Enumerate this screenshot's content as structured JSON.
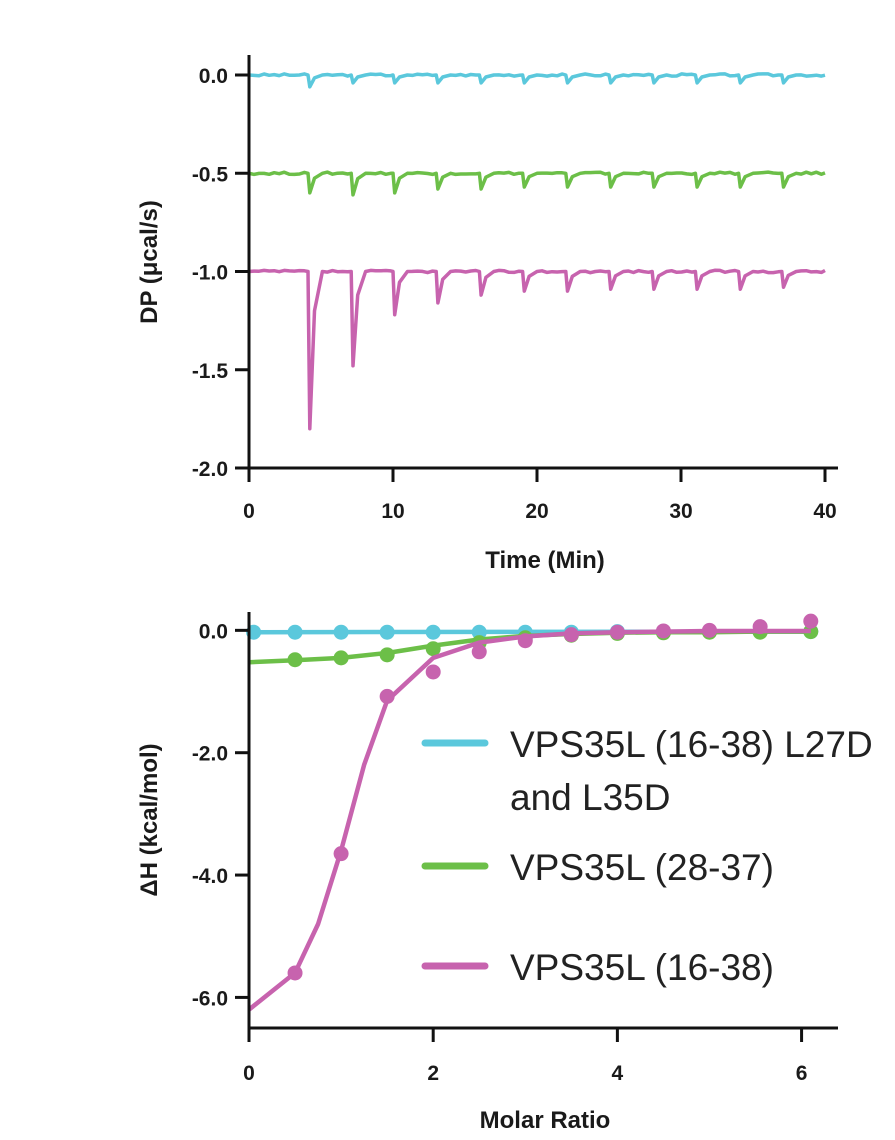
{
  "chart_data": [
    {
      "type": "line",
      "title": "",
      "xlabel": "Time (Min)",
      "ylabel": "DP (μcal/s)",
      "xlim": [
        0,
        40
      ],
      "ylim": [
        -2.0,
        0.0
      ],
      "x_ticks": [
        "0",
        "10",
        "20",
        "30",
        "40"
      ],
      "y_ticks": [
        "0.0",
        "-0.5",
        "-1.0",
        "-1.5",
        "-2.0"
      ],
      "injection_times": [
        4.1,
        7.1,
        10.0,
        13.0,
        16.0,
        19.0,
        22.0,
        25.0,
        28.0,
        31.0,
        34.0,
        37.0
      ],
      "series": [
        {
          "name": "VPS35L (16-38) L27D and L35D",
          "color": "#5bc8dc",
          "baseline": 0.0,
          "peak_depths": [
            0.06,
            0.04,
            0.04,
            0.04,
            0.04,
            0.04,
            0.04,
            0.04,
            0.04,
            0.04,
            0.04,
            0.04
          ]
        },
        {
          "name": "VPS35L (28-37)",
          "color": "#6cbf48",
          "baseline": -0.5,
          "peak_depths": [
            0.1,
            0.11,
            0.1,
            0.08,
            0.08,
            0.07,
            0.07,
            0.07,
            0.07,
            0.07,
            0.07,
            0.07
          ]
        },
        {
          "name": "VPS35L (16-38)",
          "color": "#c763ae",
          "baseline": -1.0,
          "peak_depths": [
            0.8,
            0.48,
            0.22,
            0.16,
            0.12,
            0.1,
            0.1,
            0.09,
            0.09,
            0.09,
            0.09,
            0.08
          ]
        }
      ]
    },
    {
      "type": "scatter",
      "title": "",
      "xlabel": "Molar Ratio",
      "ylabel": "ΔH (kcal/mol)",
      "xlim": [
        0,
        6.2
      ],
      "ylim": [
        -6.5,
        0.3
      ],
      "x_ticks": [
        "0",
        "2",
        "4",
        "6"
      ],
      "y_ticks": [
        "0.0",
        "-2.0",
        "-4.0",
        "-6.0"
      ],
      "series": [
        {
          "name": "VPS35L (16-38) L27D and L35D",
          "color": "#5bc8dc",
          "points_x": [
            0.05,
            0.5,
            1.0,
            1.5,
            2.0,
            2.5,
            3.0,
            3.5,
            4.0,
            4.5,
            5.0,
            5.55,
            6.1
          ],
          "points_y": [
            -0.03,
            -0.03,
            -0.03,
            -0.03,
            -0.03,
            -0.03,
            -0.03,
            -0.03,
            -0.02,
            -0.02,
            -0.02,
            -0.02,
            -0.02
          ],
          "fit_x": [
            0.0,
            6.1
          ],
          "fit_y": [
            -0.03,
            -0.02
          ]
        },
        {
          "name": "VPS35L (28-37)",
          "color": "#6cbf48",
          "points_x": [
            0.5,
            1.0,
            1.5,
            2.0,
            2.5,
            3.0,
            3.5,
            4.0,
            4.5,
            5.0,
            5.55,
            6.1
          ],
          "points_y": [
            -0.48,
            -0.45,
            -0.4,
            -0.3,
            -0.2,
            -0.12,
            -0.08,
            -0.05,
            -0.04,
            -0.03,
            -0.03,
            -0.02
          ],
          "fit_x": [
            0.0,
            0.5,
            1.0,
            1.5,
            2.0,
            2.5,
            3.0,
            3.5,
            4.0,
            4.5,
            5.0,
            5.5,
            6.1
          ],
          "fit_y": [
            -0.52,
            -0.49,
            -0.45,
            -0.37,
            -0.25,
            -0.15,
            -0.09,
            -0.06,
            -0.04,
            -0.03,
            -0.03,
            -0.02,
            -0.02
          ]
        },
        {
          "name": "VPS35L (16-38)",
          "color": "#c763ae",
          "points_x": [
            0.5,
            1.0,
            1.5,
            2.0,
            2.5,
            3.0,
            3.5,
            4.0,
            4.5,
            5.0,
            5.55,
            6.1
          ],
          "points_y": [
            -5.6,
            -3.65,
            -1.08,
            -0.68,
            -0.35,
            -0.17,
            -0.07,
            -0.03,
            -0.01,
            0.0,
            0.06,
            0.15
          ],
          "fit_x": [
            0.0,
            0.5,
            0.75,
            1.0,
            1.25,
            1.5,
            2.0,
            2.5,
            3.0,
            3.5,
            4.0,
            4.5,
            5.0,
            6.1
          ],
          "fit_y": [
            -6.2,
            -5.6,
            -4.8,
            -3.6,
            -2.2,
            -1.15,
            -0.45,
            -0.2,
            -0.1,
            -0.05,
            -0.03,
            -0.02,
            -0.01,
            -0.01
          ]
        }
      ],
      "legend": {
        "placement": "center-right",
        "entries": [
          "VPS35L (16-38) L27D",
          "and L35D",
          "VPS35L (28-37)",
          "VPS35L (16-38)"
        ]
      }
    }
  ]
}
